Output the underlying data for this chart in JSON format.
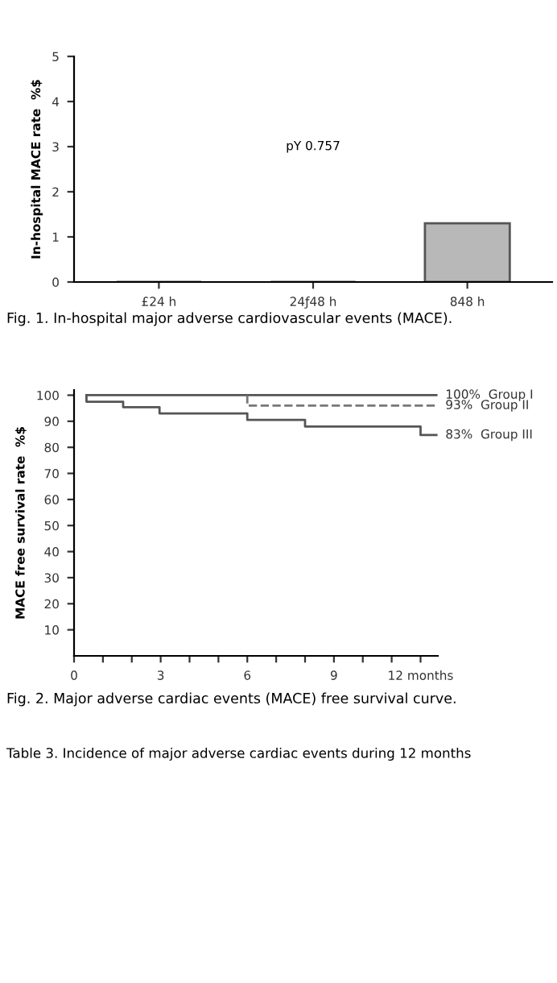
{
  "chart_data": [
    {
      "type": "bar",
      "title": "Fig. 1. In-hospital major adverse cardiovascular events (MACE).",
      "ylabel": "In-hospital MACE rate  %$",
      "categories": [
        "£24 h",
        "24ƒ48 h",
        "848 h"
      ],
      "values": [
        0,
        0,
        1.3
      ],
      "colors": [
        "#555555",
        "#555555",
        "#b8b8b8"
      ],
      "ylim": [
        0,
        5
      ],
      "yticks": [
        0,
        1,
        2,
        3,
        4,
        5
      ],
      "grid": false,
      "legend": false,
      "annotations": [
        "pY 0.757"
      ]
    },
    {
      "type": "step",
      "title": "Fig. 2. Major adverse cardiac events (MACE) free survival curve.",
      "ylabel": "MACE free survival rate  %$",
      "series": [
        {
          "name": "100%  Group I",
          "color": "#555555",
          "line_style": "solid",
          "x": [
            0.43,
            12.55
          ],
          "values": [
            100,
            100
          ]
        },
        {
          "name": "93%  Group II",
          "color": "#777777",
          "line_style": "dashed",
          "x": [
            6,
            6,
            12.55
          ],
          "values": [
            100,
            96,
            96
          ]
        },
        {
          "name": "83%  Group III",
          "color": "#555555",
          "line_style": "solid",
          "x": [
            0.43,
            0.43,
            1.7,
            2.96,
            6,
            8,
            12,
            12.55
          ],
          "values": [
            100,
            97.5,
            95.4,
            93,
            90.5,
            88,
            84.7,
            84.7
          ]
        }
      ],
      "xlim": [
        0,
        12.6
      ],
      "ylim": [
        0,
        102
      ],
      "xticks": [
        0,
        {
          "value": 1,
          "label": null
        },
        {
          "value": 2,
          "label": null
        },
        3,
        {
          "value": 4,
          "label": null
        },
        {
          "value": 5,
          "label": null
        },
        6,
        {
          "value": 7,
          "label": null
        },
        {
          "value": 8,
          "label": null
        },
        9,
        {
          "value": 10,
          "label": null
        },
        {
          "value": 11,
          "label": null
        },
        {
          "value": 12,
          "label": "12 months"
        }
      ],
      "yticks": [
        10,
        20,
        30,
        40,
        50,
        60,
        70,
        80,
        90,
        100
      ],
      "grid": false,
      "legend": false,
      "marker": "none",
      "annotations": [
        "Table 3. Incidence of major adverse cardiac events during 12 months"
      ]
    }
  ]
}
